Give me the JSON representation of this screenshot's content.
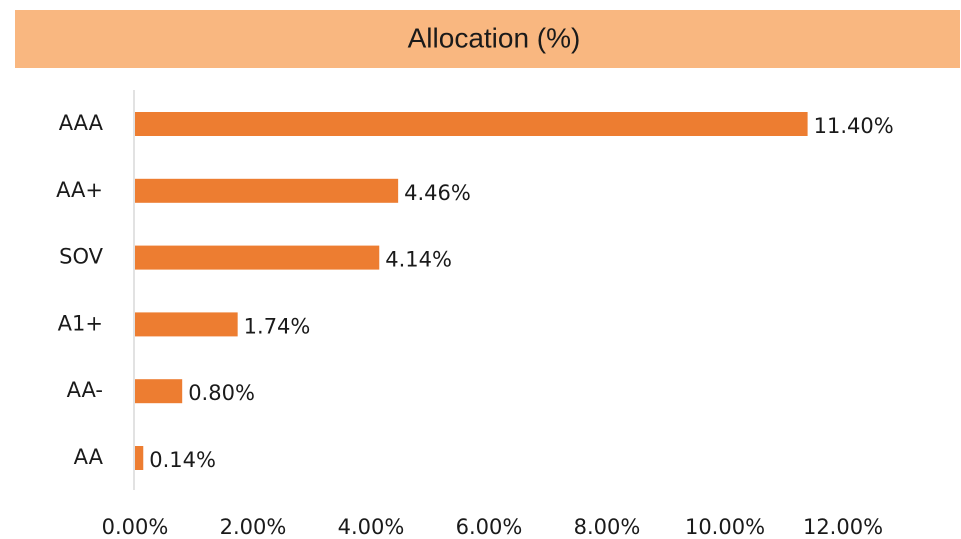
{
  "chart_data": {
    "type": "bar",
    "orientation": "horizontal",
    "title": "Allocation (%)",
    "categories": [
      "AAA",
      "AA+",
      "SOV",
      "A1+",
      "AA-",
      "AA"
    ],
    "values": [
      11.4,
      4.46,
      4.14,
      1.74,
      0.8,
      0.14
    ],
    "value_labels": [
      "11.40%",
      "4.46%",
      "4.14%",
      "1.74%",
      "0.80%",
      "0.14%"
    ],
    "color": "#ed7d31",
    "xlim": [
      0,
      12
    ],
    "xticks": [
      {
        "value": 0,
        "label": "0.00%"
      },
      {
        "value": 2,
        "label": "2.00%"
      },
      {
        "value": 4,
        "label": "4.00%"
      },
      {
        "value": 6,
        "label": "6.00%"
      },
      {
        "value": 8,
        "label": "8.00%"
      },
      {
        "value": 10,
        "label": "10.00%"
      },
      {
        "value": 12,
        "label": "12.00%"
      }
    ],
    "grid": false
  }
}
